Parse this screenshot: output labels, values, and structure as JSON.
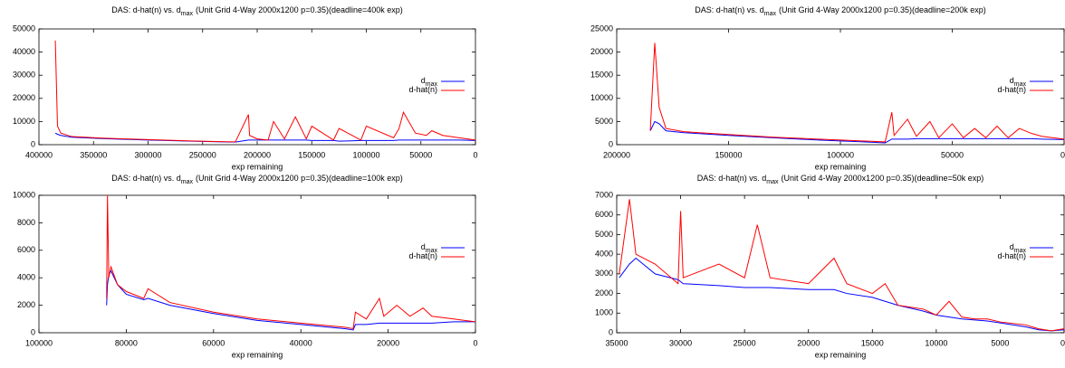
{
  "chart_data": [
    {
      "type": "line",
      "title": {
        "prefix": "DAS: d-hat(n) vs. d",
        "sub": "max",
        "suffix": "(Unit Grid 4-Way 2000x1200 p=0.35)(deadline=400k exp)"
      },
      "x_label": "exp remaining",
      "xlim": [
        400000,
        0
      ],
      "xticks": [
        400000,
        350000,
        300000,
        250000,
        200000,
        150000,
        100000,
        50000,
        0
      ],
      "ylim": [
        0,
        50000
      ],
      "yticks": [
        0,
        10000,
        20000,
        30000,
        40000,
        50000
      ],
      "x": [
        385000,
        383000,
        380000,
        370000,
        340000,
        300000,
        260000,
        220000,
        208000,
        207000,
        200000,
        190000,
        185000,
        175000,
        165000,
        155000,
        150000,
        130000,
        125000,
        105000,
        100000,
        75000,
        70000,
        66000,
        55000,
        45000,
        40000,
        30000,
        15000,
        0
      ],
      "series": [
        {
          "name": "d",
          "name_sub": "max",
          "color": "#0000ff",
          "values": [
            5000,
            4500,
            4000,
            3200,
            2600,
            2000,
            1500,
            1100,
            2000,
            2000,
            2000,
            2000,
            2000,
            2000,
            2000,
            2000,
            1800,
            1800,
            1500,
            1800,
            1800,
            1800,
            2000,
            2000,
            2000,
            2000,
            2000,
            2000,
            2000,
            1800
          ]
        },
        {
          "name": "d-hat(n)",
          "color": "#ff0000",
          "values": [
            45000,
            8000,
            5000,
            3500,
            2800,
            2200,
            1600,
            1200,
            13000,
            4000,
            2500,
            2000,
            10000,
            2500,
            12000,
            2500,
            8000,
            2000,
            7000,
            2000,
            8000,
            3000,
            7000,
            14000,
            5000,
            4000,
            6000,
            4000,
            3000,
            2000
          ]
        }
      ]
    },
    {
      "type": "line",
      "title": {
        "prefix": "DAS: d-hat(n) vs. d",
        "sub": "max",
        "suffix": "(Unit Grid 4-Way 2000x1200 p=0.35)(deadline=200k exp)"
      },
      "x_label": "exp remaining",
      "xlim": [
        200000,
        0
      ],
      "xticks": [
        200000,
        150000,
        100000,
        50000,
        0
      ],
      "ylim": [
        0,
        25000
      ],
      "yticks": [
        0,
        5000,
        10000,
        15000,
        20000,
        25000
      ],
      "x": [
        185000,
        183000,
        181000,
        178000,
        170000,
        150000,
        130000,
        110000,
        90000,
        80000,
        77000,
        76000,
        70000,
        66000,
        60000,
        56000,
        50000,
        45000,
        40000,
        35000,
        30000,
        25000,
        20000,
        15000,
        10000,
        0
      ],
      "series": [
        {
          "name": "d",
          "name_sub": "max",
          "color": "#0000ff",
          "values": [
            3000,
            5000,
            4500,
            3000,
            2600,
            2000,
            1500,
            1000,
            600,
            400,
            1200,
            1200,
            1200,
            1300,
            1300,
            1300,
            1300,
            1300,
            1300,
            1300,
            1300,
            1300,
            1300,
            1300,
            1200,
            1100
          ]
        },
        {
          "name": "d-hat(n)",
          "color": "#ff0000",
          "values": [
            3000,
            22000,
            8000,
            3500,
            2800,
            2200,
            1600,
            1200,
            800,
            600,
            7000,
            2000,
            5500,
            1800,
            5000,
            1500,
            4500,
            1500,
            3500,
            1500,
            4000,
            1500,
            3500,
            2500,
            1800,
            1200
          ]
        }
      ]
    },
    {
      "type": "line",
      "title": {
        "prefix": "DAS: d-hat(n) vs. d",
        "sub": "max",
        "suffix": "(Unit Grid 4-Way 2000x1200 p=0.35)(deadline=100k exp)"
      },
      "x_label": "exp remaining",
      "xlim": [
        100000,
        0
      ],
      "xticks": [
        100000,
        80000,
        60000,
        40000,
        20000,
        0
      ],
      "ylim": [
        0,
        10000
      ],
      "yticks": [
        0,
        2000,
        4000,
        6000,
        8000,
        10000
      ],
      "x": [
        84500,
        84300,
        84000,
        83500,
        82000,
        80000,
        76000,
        75000,
        70000,
        60000,
        50000,
        40000,
        30000,
        28000,
        27500,
        25000,
        22000,
        21000,
        18000,
        15000,
        12000,
        10000,
        5000,
        0
      ],
      "series": [
        {
          "name": "d",
          "name_sub": "max",
          "color": "#0000ff",
          "values": [
            2000,
            3500,
            4200,
            4500,
            3500,
            2800,
            2400,
            2500,
            2000,
            1400,
            900,
            600,
            300,
            200,
            600,
            600,
            700,
            700,
            700,
            700,
            700,
            700,
            800,
            800
          ]
        },
        {
          "name": "d-hat(n)",
          "color": "#ff0000",
          "values": [
            2500,
            10000,
            4000,
            4800,
            3500,
            3000,
            2500,
            3200,
            2200,
            1500,
            1000,
            700,
            400,
            300,
            1500,
            1000,
            2500,
            1200,
            2000,
            1200,
            1800,
            1200,
            1000,
            800
          ]
        }
      ]
    },
    {
      "type": "line",
      "title": {
        "prefix": "DAS: d-hat(n) vs. d",
        "sub": "max",
        "suffix": "(Unit Grid 4-Way 2000x1200 p=0.35)(deadline=50k exp)"
      },
      "x_label": "exp remaining",
      "xlim": [
        35000,
        0
      ],
      "xticks": [
        35000,
        30000,
        25000,
        20000,
        15000,
        10000,
        5000,
        0
      ],
      "ylim": [
        0,
        7000
      ],
      "yticks": [
        0,
        1000,
        2000,
        3000,
        4000,
        5000,
        6000,
        7000
      ],
      "x": [
        34800,
        34000,
        33500,
        32000,
        30200,
        30000,
        29800,
        27000,
        25000,
        24000,
        23000,
        20000,
        18000,
        17000,
        15000,
        14000,
        13000,
        11000,
        10000,
        9000,
        8000,
        7000,
        6000,
        5000,
        3000,
        2000,
        1000,
        0
      ],
      "series": [
        {
          "name": "d",
          "name_sub": "max",
          "color": "#0000ff",
          "values": [
            2800,
            3500,
            3800,
            3000,
            2700,
            2600,
            2500,
            2400,
            2300,
            2300,
            2300,
            2200,
            2200,
            2000,
            1800,
            1600,
            1400,
            1100,
            900,
            800,
            700,
            650,
            600,
            500,
            300,
            150,
            100,
            150
          ]
        },
        {
          "name": "d-hat(n)",
          "color": "#ff0000",
          "values": [
            3000,
            6800,
            4000,
            3500,
            2500,
            6200,
            2800,
            3500,
            2800,
            5500,
            2800,
            2500,
            3800,
            2500,
            2000,
            2500,
            1400,
            1200,
            900,
            1600,
            800,
            700,
            700,
            550,
            400,
            200,
            100,
            200
          ]
        }
      ]
    }
  ]
}
